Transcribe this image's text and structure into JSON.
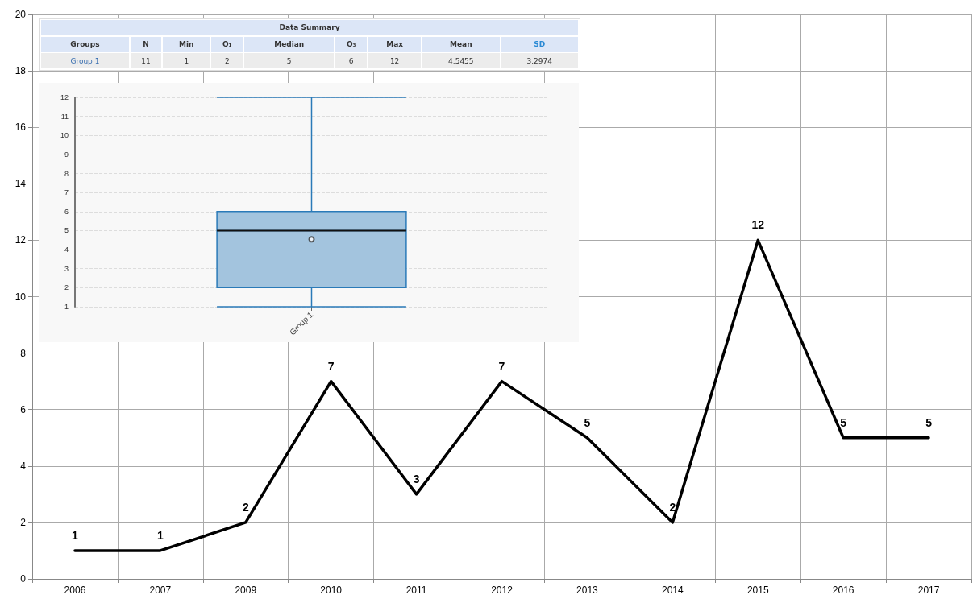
{
  "chart_data": [
    {
      "type": "line",
      "categories": [
        "2006",
        "2007",
        "2009",
        "2010",
        "2011",
        "2012",
        "2013",
        "2014",
        "2015",
        "2016",
        "2017"
      ],
      "series": [
        {
          "color": "#000000",
          "values": [
            1,
            1,
            2,
            7,
            3,
            7,
            5,
            2,
            12,
            5,
            5
          ]
        }
      ],
      "ylim": [
        0,
        20
      ],
      "yticks": [
        0,
        2,
        4,
        6,
        8,
        10,
        12,
        14,
        16,
        18,
        20
      ],
      "grid": true,
      "data_labels": true,
      "marker": "none",
      "line_style": "solid"
    },
    {
      "type": "other",
      "title": "Data Summary",
      "ylabel": "Groups",
      "categories": [
        "N",
        "Min",
        "Q₁",
        "Median",
        "Q₃",
        "Max",
        "Mean",
        "SD"
      ],
      "y_categories": [
        "Group 1"
      ],
      "annotations": [
        "11",
        "1",
        "2",
        "5",
        "6",
        "12",
        "4.5455",
        "3.2974"
      ]
    },
    {
      "type": "box",
      "categories": [
        "Group 1"
      ],
      "color": "#a3c4de",
      "boxes": [
        {
          "low": 1,
          "q1": 2,
          "median": 5,
          "q3": 6,
          "high": 12,
          "mean": 4.5455
        }
      ],
      "ylim": [
        1,
        12
      ],
      "yticks": [
        1,
        2,
        3,
        4,
        5,
        6,
        7,
        8,
        9,
        10,
        11,
        12
      ],
      "grid": "y"
    }
  ]
}
